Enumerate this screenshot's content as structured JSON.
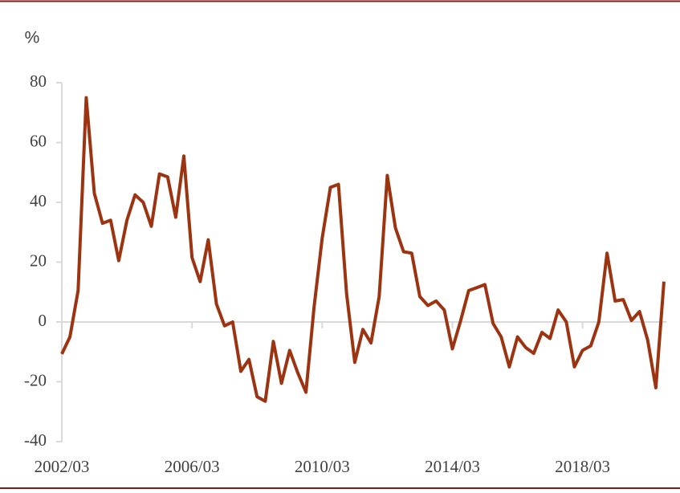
{
  "chart_data": {
    "type": "line",
    "y_label": "%",
    "categories": [
      "2002/03",
      null,
      null,
      null,
      null,
      null,
      null,
      null,
      null,
      null,
      null,
      null,
      null,
      null,
      null,
      null,
      "2006/03",
      null,
      null,
      null,
      null,
      null,
      null,
      null,
      null,
      null,
      null,
      null,
      null,
      null,
      null,
      null,
      "2010/03",
      null,
      null,
      null,
      null,
      null,
      null,
      null,
      null,
      null,
      null,
      null,
      null,
      null,
      null,
      null,
      "2014/03",
      null,
      null,
      null,
      null,
      null,
      null,
      null,
      null,
      null,
      null,
      null,
      null,
      null,
      null,
      null,
      "2018/03",
      null,
      null,
      null,
      null,
      null,
      null,
      null,
      null,
      null,
      null
    ],
    "values": [
      -10.7,
      -5,
      10.5,
      75,
      43,
      33,
      34,
      20.5,
      34,
      42.5,
      40,
      32,
      49.5,
      48.5,
      35,
      55.5,
      21.5,
      13.5,
      27.5,
      6,
      -1.3,
      0,
      -16.5,
      -12.5,
      -25,
      -26.5,
      -6.5,
      -20.5,
      -9.5,
      -17,
      -23.5,
      5,
      28,
      45,
      46,
      9.5,
      -13.5,
      -2.5,
      -7,
      8.5,
      49,
      31.5,
      23.5,
      23,
      8.5,
      5.5,
      7,
      4,
      -9,
      0.3,
      10.5,
      11.5,
      12.5,
      -0.5,
      -5,
      -15,
      -5,
      -8.5,
      -10.5,
      -3.5,
      -5.5,
      4,
      0,
      -15,
      -9.5,
      -8,
      0,
      23,
      7,
      7.5,
      0.5,
      3.5,
      -6,
      -22,
      13.5
    ],
    "color": "#9c3412",
    "ylim": [
      -40,
      80
    ],
    "yticks": [
      -40,
      -20,
      0,
      20,
      40,
      60,
      80
    ]
  }
}
